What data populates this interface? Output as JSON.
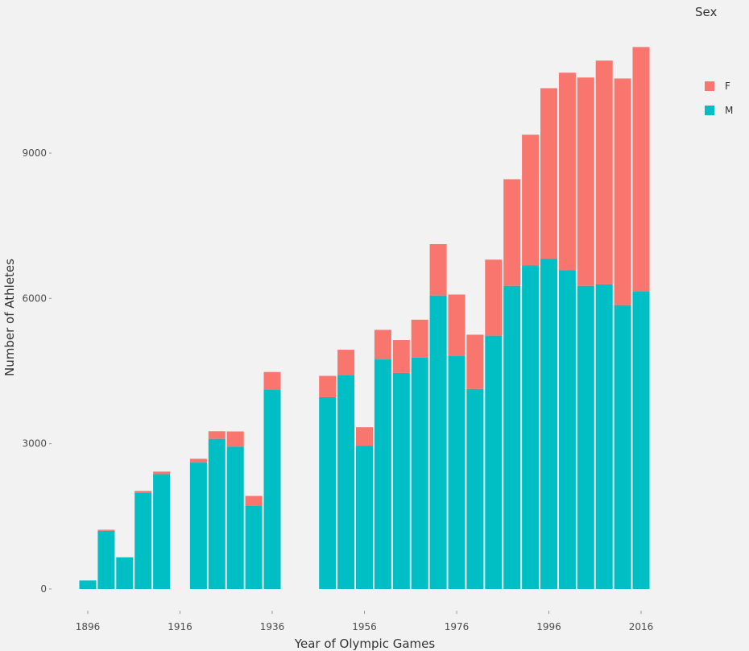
{
  "chart_data": {
    "type": "bar",
    "stacked": true,
    "xlabel": "Year of Olympic Games",
    "ylabel": "Number of Athletes",
    "x_ticks": [
      1896,
      1916,
      1936,
      1956,
      1976,
      1996,
      2016
    ],
    "y_ticks": [
      0,
      3000,
      6000,
      9000
    ],
    "xlim": [
      1891,
      2022
    ],
    "ylim": [
      0,
      11500
    ],
    "grid": false,
    "legend": {
      "title": "Sex",
      "position": "right",
      "entries": [
        "F",
        "M"
      ]
    },
    "colors": {
      "F": "#f8766d",
      "M": "#00bfc4"
    },
    "x": [
      1896,
      1900,
      1904,
      1908,
      1912,
      1920,
      1924,
      1928,
      1932,
      1936,
      1948,
      1952,
      1956,
      1960,
      1964,
      1968,
      1972,
      1976,
      1980,
      1984,
      1988,
      1992,
      1996,
      2000,
      2004,
      2008,
      2012,
      2016
    ],
    "series": [
      {
        "name": "M",
        "values": [
          176,
          1200,
          650,
          1980,
          2370,
          2610,
          3100,
          2940,
          1720,
          4120,
          3960,
          4420,
          2960,
          4740,
          4460,
          4780,
          6060,
          4820,
          4130,
          5230,
          6260,
          6680,
          6820,
          6580,
          6260,
          6290,
          5860,
          6150
        ]
      },
      {
        "name": "F",
        "values": [
          0,
          23,
          6,
          44,
          53,
          78,
          156,
          312,
          201,
          360,
          440,
          520,
          380,
          610,
          680,
          780,
          1060,
          1260,
          1120,
          1570,
          2200,
          2700,
          3520,
          4080,
          4300,
          4620,
          4680,
          5040
        ]
      }
    ]
  }
}
